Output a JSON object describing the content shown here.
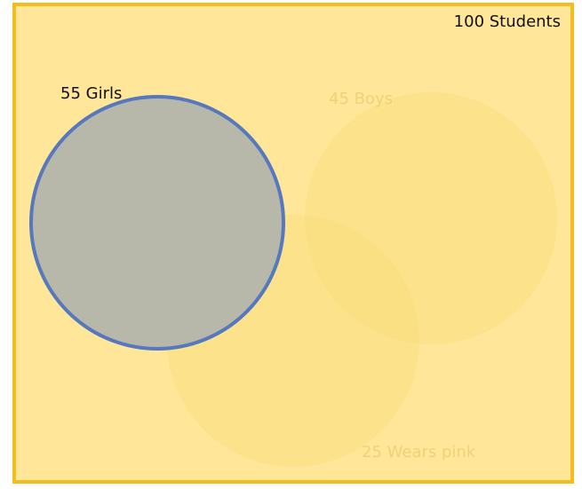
{
  "universe": {
    "label": "100 Students"
  },
  "sets": [
    {
      "key": "girls",
      "label": "55 Girls",
      "highlighted": true
    },
    {
      "key": "boys",
      "label": "45 Boys",
      "highlighted": false
    },
    {
      "key": "pink",
      "label": "25 Wears pink",
      "highlighted": false
    }
  ],
  "colors": {
    "universe_fill": "#FFE699",
    "universe_border": "#F5BC1E",
    "highlight_fill": "#B7B8A9",
    "highlight_border": "#5678BE",
    "faded_fill": "#FADE7E",
    "faded_label": "#EDD27A",
    "label_text": "#111111"
  }
}
